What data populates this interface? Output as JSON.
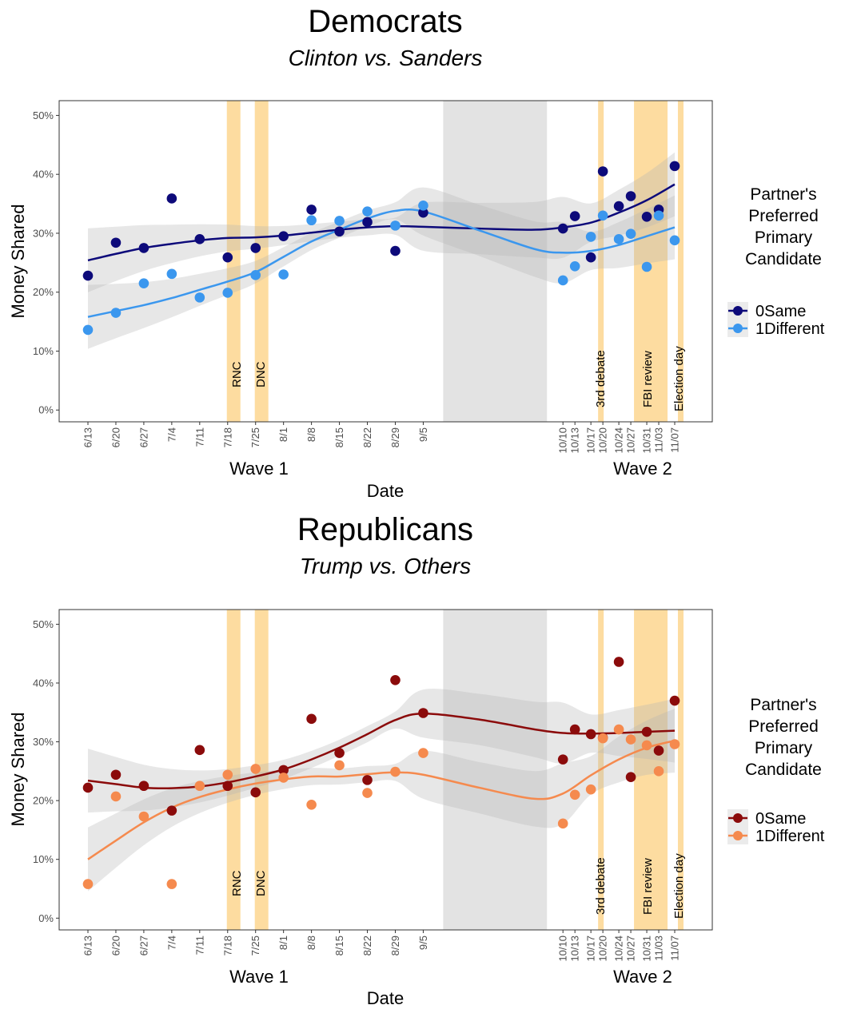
{
  "chart_data": [
    {
      "type": "scatter",
      "title": "Democrats",
      "subtitle": "Clinton vs. Sanders",
      "xlabel": "Date",
      "ylabel": "Money Shared",
      "ylim": [
        -0.02,
        0.525
      ],
      "y_ticks": [
        0,
        0.1,
        0.2,
        0.3,
        0.4,
        0.5
      ],
      "y_tick_labels": [
        "0%",
        "10%",
        "20%",
        "30%",
        "40%",
        "50%"
      ],
      "x_tick_labels": [
        "6/13",
        "6/20",
        "6/27",
        "7/4",
        "7/11",
        "7/18",
        "7/25",
        "8/1",
        "8/8",
        "8/15",
        "8/22",
        "8/29",
        "9/5",
        "10/10",
        "10/13",
        "10/17",
        "10/20",
        "10/24",
        "10/27",
        "10/31",
        "11/03",
        "11/07"
      ],
      "wave_labels": [
        "Wave 1",
        "Wave 2"
      ],
      "legend": {
        "title_lines": [
          "Partner's",
          "Preferred",
          "Primary",
          "Candidate"
        ],
        "position": "right"
      },
      "events": [
        {
          "label": "RNC"
        },
        {
          "label": "DNC"
        },
        {
          "label": "3rd debate"
        },
        {
          "label": "FBI review"
        },
        {
          "label": "Election day"
        }
      ],
      "series": [
        {
          "name": "0Same",
          "color": "#0d0a7a",
          "points": [
            [
              "6/13",
              0.228
            ],
            [
              "6/20",
              0.284
            ],
            [
              "6/27",
              0.275
            ],
            [
              "7/4",
              0.359
            ],
            [
              "7/11",
              0.29
            ],
            [
              "7/18",
              0.259
            ],
            [
              "7/25",
              0.275
            ],
            [
              "8/1",
              0.295
            ],
            [
              "8/8",
              0.34
            ],
            [
              "8/15",
              0.303
            ],
            [
              "8/22",
              0.319
            ],
            [
              "8/29",
              0.27
            ],
            [
              "9/5",
              0.335
            ],
            [
              "10/10",
              0.308
            ],
            [
              "10/13",
              0.329
            ],
            [
              "10/17",
              0.259
            ],
            [
              "10/20",
              0.405
            ],
            [
              "10/24",
              0.346
            ],
            [
              "10/27",
              0.363
            ],
            [
              "10/31",
              0.328
            ],
            [
              "11/03",
              0.34
            ],
            [
              "11/07",
              0.414
            ]
          ],
          "smooth": [
            [
              "6/13",
              0.254
            ],
            [
              "6/20",
              0.265
            ],
            [
              "6/27",
              0.275
            ],
            [
              "7/4",
              0.282
            ],
            [
              "7/11",
              0.288
            ],
            [
              "7/18",
              0.292
            ],
            [
              "7/25",
              0.293
            ],
            [
              "8/1",
              0.296
            ],
            [
              "8/8",
              0.301
            ],
            [
              "8/15",
              0.306
            ],
            [
              "8/22",
              0.31
            ],
            [
              "8/29",
              0.312
            ],
            [
              "9/5",
              0.311
            ],
            [
              "9/19",
              0.308
            ],
            [
              "10/3",
              0.306
            ],
            [
              "10/10",
              0.31
            ],
            [
              "10/17",
              0.318
            ],
            [
              "10/24",
              0.335
            ],
            [
              "10/31",
              0.356
            ],
            [
              "11/07",
              0.383
            ]
          ]
        },
        {
          "name": "1Different",
          "color": "#3b97ee",
          "points": [
            [
              "6/13",
              0.136
            ],
            [
              "6/20",
              0.165
            ],
            [
              "6/27",
              0.215
            ],
            [
              "7/4",
              0.231
            ],
            [
              "7/11",
              0.191
            ],
            [
              "7/18",
              0.199
            ],
            [
              "7/25",
              0.229
            ],
            [
              "8/1",
              0.23
            ],
            [
              "8/8",
              0.322
            ],
            [
              "8/15",
              0.321
            ],
            [
              "8/22",
              0.337
            ],
            [
              "8/29",
              0.313
            ],
            [
              "9/5",
              0.347
            ],
            [
              "10/10",
              0.22
            ],
            [
              "10/13",
              0.244
            ],
            [
              "10/17",
              0.294
            ],
            [
              "10/20",
              0.33
            ],
            [
              "10/24",
              0.29
            ],
            [
              "10/27",
              0.299
            ],
            [
              "10/31",
              0.243
            ],
            [
              "11/03",
              0.33
            ],
            [
              "11/07",
              0.288
            ]
          ],
          "smooth": [
            [
              "6/13",
              0.158
            ],
            [
              "6/20",
              0.168
            ],
            [
              "6/27",
              0.178
            ],
            [
              "7/4",
              0.19
            ],
            [
              "7/11",
              0.204
            ],
            [
              "7/18",
              0.218
            ],
            [
              "7/25",
              0.234
            ],
            [
              "8/1",
              0.26
            ],
            [
              "8/8",
              0.286
            ],
            [
              "8/15",
              0.306
            ],
            [
              "8/22",
              0.325
            ],
            [
              "8/29",
              0.338
            ],
            [
              "9/5",
              0.337
            ],
            [
              "9/19",
              0.305
            ],
            [
              "10/3",
              0.273
            ],
            [
              "10/10",
              0.267
            ],
            [
              "10/17",
              0.27
            ],
            [
              "10/24",
              0.28
            ],
            [
              "10/31",
              0.295
            ],
            [
              "11/07",
              0.31
            ]
          ]
        }
      ]
    },
    {
      "type": "scatter",
      "title": "Republicans",
      "subtitle": "Trump vs. Others",
      "xlabel": "Date",
      "ylabel": "Money Shared",
      "ylim": [
        -0.02,
        0.525
      ],
      "y_ticks": [
        0,
        0.1,
        0.2,
        0.3,
        0.4,
        0.5
      ],
      "y_tick_labels": [
        "0%",
        "10%",
        "20%",
        "30%",
        "40%",
        "50%"
      ],
      "x_tick_labels": [
        "6/13",
        "6/20",
        "6/27",
        "7/4",
        "7/11",
        "7/18",
        "7/25",
        "8/1",
        "8/8",
        "8/15",
        "8/22",
        "8/29",
        "9/5",
        "10/10",
        "10/13",
        "10/17",
        "10/20",
        "10/24",
        "10/27",
        "10/31",
        "11/03",
        "11/07"
      ],
      "wave_labels": [
        "Wave 1",
        "Wave 2"
      ],
      "legend": {
        "title_lines": [
          "Partner's",
          "Preferred",
          "Primary",
          "Candidate"
        ],
        "position": "right"
      },
      "events": [
        {
          "label": "RNC"
        },
        {
          "label": "DNC"
        },
        {
          "label": "3rd debate"
        },
        {
          "label": "FBI review"
        },
        {
          "label": "Election day"
        }
      ],
      "series": [
        {
          "name": "0Same",
          "color": "#8b0b0b",
          "points": [
            [
              "6/13",
              0.222
            ],
            [
              "6/20",
              0.244
            ],
            [
              "6/27",
              0.225
            ],
            [
              "7/4",
              0.183
            ],
            [
              "7/11",
              0.286
            ],
            [
              "7/18",
              0.225
            ],
            [
              "7/25",
              0.214
            ],
            [
              "8/1",
              0.252
            ],
            [
              "8/8",
              0.339
            ],
            [
              "8/15",
              0.281
            ],
            [
              "8/22",
              0.235
            ],
            [
              "8/29",
              0.405
            ],
            [
              "9/5",
              0.349
            ],
            [
              "10/10",
              0.27
            ],
            [
              "10/13",
              0.321
            ],
            [
              "10/17",
              0.313
            ],
            [
              "10/20",
              0.307
            ],
            [
              "10/24",
              0.436
            ],
            [
              "10/27",
              0.24
            ],
            [
              "10/31",
              0.317
            ],
            [
              "11/03",
              0.285
            ],
            [
              "11/07",
              0.37
            ]
          ],
          "smooth": [
            [
              "6/13",
              0.234
            ],
            [
              "6/20",
              0.228
            ],
            [
              "6/27",
              0.222
            ],
            [
              "7/4",
              0.221
            ],
            [
              "7/11",
              0.224
            ],
            [
              "7/18",
              0.231
            ],
            [
              "7/25",
              0.241
            ],
            [
              "8/1",
              0.253
            ],
            [
              "8/8",
              0.27
            ],
            [
              "8/15",
              0.29
            ],
            [
              "8/22",
              0.313
            ],
            [
              "8/29",
              0.337
            ],
            [
              "9/5",
              0.348
            ],
            [
              "9/19",
              0.338
            ],
            [
              "10/3",
              0.321
            ],
            [
              "10/10",
              0.315
            ],
            [
              "10/17",
              0.314
            ],
            [
              "10/24",
              0.315
            ],
            [
              "10/31",
              0.317
            ],
            [
              "11/07",
              0.319
            ]
          ]
        },
        {
          "name": "1Different",
          "color": "#f58a4e",
          "points": [
            [
              "6/13",
              0.058
            ],
            [
              "6/20",
              0.207
            ],
            [
              "6/27",
              0.173
            ],
            [
              "7/4",
              0.058
            ],
            [
              "7/11",
              0.225
            ],
            [
              "7/18",
              0.244
            ],
            [
              "7/25",
              0.254
            ],
            [
              "8/1",
              0.239
            ],
            [
              "8/8",
              0.193
            ],
            [
              "8/15",
              0.26
            ],
            [
              "8/22",
              0.213
            ],
            [
              "8/29",
              0.249
            ],
            [
              "9/5",
              0.281
            ],
            [
              "10/10",
              0.161
            ],
            [
              "10/13",
              0.21
            ],
            [
              "10/17",
              0.219
            ],
            [
              "10/20",
              0.306
            ],
            [
              "10/24",
              0.321
            ],
            [
              "10/27",
              0.304
            ],
            [
              "10/31",
              0.294
            ],
            [
              "11/03",
              0.25
            ],
            [
              "11/07",
              0.296
            ]
          ],
          "smooth": [
            [
              "6/13",
              0.1
            ],
            [
              "6/20",
              0.132
            ],
            [
              "6/27",
              0.163
            ],
            [
              "7/4",
              0.188
            ],
            [
              "7/11",
              0.206
            ],
            [
              "7/18",
              0.219
            ],
            [
              "7/25",
              0.229
            ],
            [
              "8/1",
              0.236
            ],
            [
              "8/8",
              0.241
            ],
            [
              "8/15",
              0.241
            ],
            [
              "8/22",
              0.245
            ],
            [
              "8/29",
              0.248
            ],
            [
              "9/5",
              0.244
            ],
            [
              "9/19",
              0.222
            ],
            [
              "10/3",
              0.203
            ],
            [
              "10/10",
              0.212
            ],
            [
              "10/17",
              0.243
            ],
            [
              "10/24",
              0.27
            ],
            [
              "10/31",
              0.29
            ],
            [
              "11/07",
              0.302
            ]
          ]
        }
      ]
    }
  ]
}
